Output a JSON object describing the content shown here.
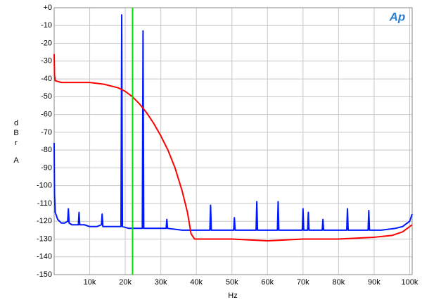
{
  "chart_data": {
    "type": "line",
    "logo": "Ap",
    "ylabel": "dBr",
    "ylabel_unit": "A",
    "xlabel": "Hz",
    "xlim": [
      0,
      100700
    ],
    "ylim": [
      -150,
      0
    ],
    "xticks": [
      {
        "value": 10000,
        "label": "10k"
      },
      {
        "value": 20000,
        "label": "20k"
      },
      {
        "value": 30000,
        "label": "30k"
      },
      {
        "value": 40000,
        "label": "40k"
      },
      {
        "value": 50000,
        "label": "50k"
      },
      {
        "value": 60000,
        "label": "60k"
      },
      {
        "value": 70000,
        "label": "70k"
      },
      {
        "value": 80000,
        "label": "80k"
      },
      {
        "value": 90000,
        "label": "90k"
      },
      {
        "value": 100000,
        "label": "100k"
      }
    ],
    "yticks": [
      {
        "value": 0,
        "label": "+0"
      },
      -10,
      -20,
      -30,
      -40,
      -50,
      -60,
      -70,
      -80,
      -90,
      -100,
      -110,
      -120,
      -130,
      -140,
      -150
    ],
    "grid": true,
    "series": [
      {
        "color": "#0018ff",
        "x": [
          0,
          100,
          300,
          1000,
          2000,
          3000,
          3800,
          4000,
          4200,
          5000,
          6800,
          7000,
          7200,
          8500,
          10000,
          12000,
          13300,
          13500,
          13700,
          16000,
          18800,
          19000,
          19200,
          21000,
          24800,
          25000,
          25200,
          28000,
          31500,
          31700,
          31900,
          36000,
          40000,
          43800,
          44000,
          44200,
          48000,
          50500,
          50700,
          50900,
          54000,
          56800,
          57000,
          57200,
          60000,
          62800,
          63000,
          63200,
          66000,
          69800,
          70000,
          70200,
          71300,
          71500,
          71700,
          75400,
          75600,
          75800,
          80000,
          82300,
          82500,
          82700,
          86000,
          88300,
          88500,
          88700,
          92000,
          96000,
          98000,
          100000,
          100700
        ],
        "values": [
          -76,
          -105,
          -115,
          -119,
          -121,
          -121,
          -120,
          -113,
          -121,
          -122,
          -122,
          -115,
          -122,
          -122,
          -123,
          -123,
          -122,
          -116,
          -123,
          -123,
          -123,
          -4,
          -123,
          -124,
          -124,
          -13,
          -124,
          -124,
          -124,
          -119,
          -124,
          -125,
          -125,
          -125,
          -111,
          -125,
          -125,
          -125,
          -118,
          -125,
          -125,
          -125,
          -109,
          -125,
          -125,
          -125,
          -109,
          -125,
          -125,
          -125,
          -113,
          -125,
          -125,
          -115,
          -125,
          -125,
          -119,
          -125,
          -125,
          -125,
          -113,
          -125,
          -125,
          -125,
          -114,
          -125,
          -125,
          -124,
          -123,
          -120,
          -116
        ]
      },
      {
        "color": "#ff0000",
        "x": [
          0,
          100,
          300,
          2000,
          5000,
          10000,
          14000,
          18000,
          20000,
          22000,
          24000,
          26000,
          28000,
          30000,
          32000,
          34000,
          36000,
          37500,
          38500,
          39500,
          50000,
          60000,
          70000,
          80000,
          90000,
          95000,
          98000,
          100700
        ],
        "values": [
          -26,
          -38,
          -41,
          -42,
          -42,
          -42,
          -43,
          -45,
          -47,
          -50,
          -54,
          -59,
          -65,
          -72,
          -80,
          -90,
          -103,
          -115,
          -127,
          -130,
          -130,
          -131,
          -130,
          -130,
          -129,
          -128,
          -126,
          -122
        ]
      },
      {
        "color": "#00e000",
        "x": [
          22050,
          22050
        ],
        "values": [
          0,
          -150
        ]
      }
    ]
  }
}
